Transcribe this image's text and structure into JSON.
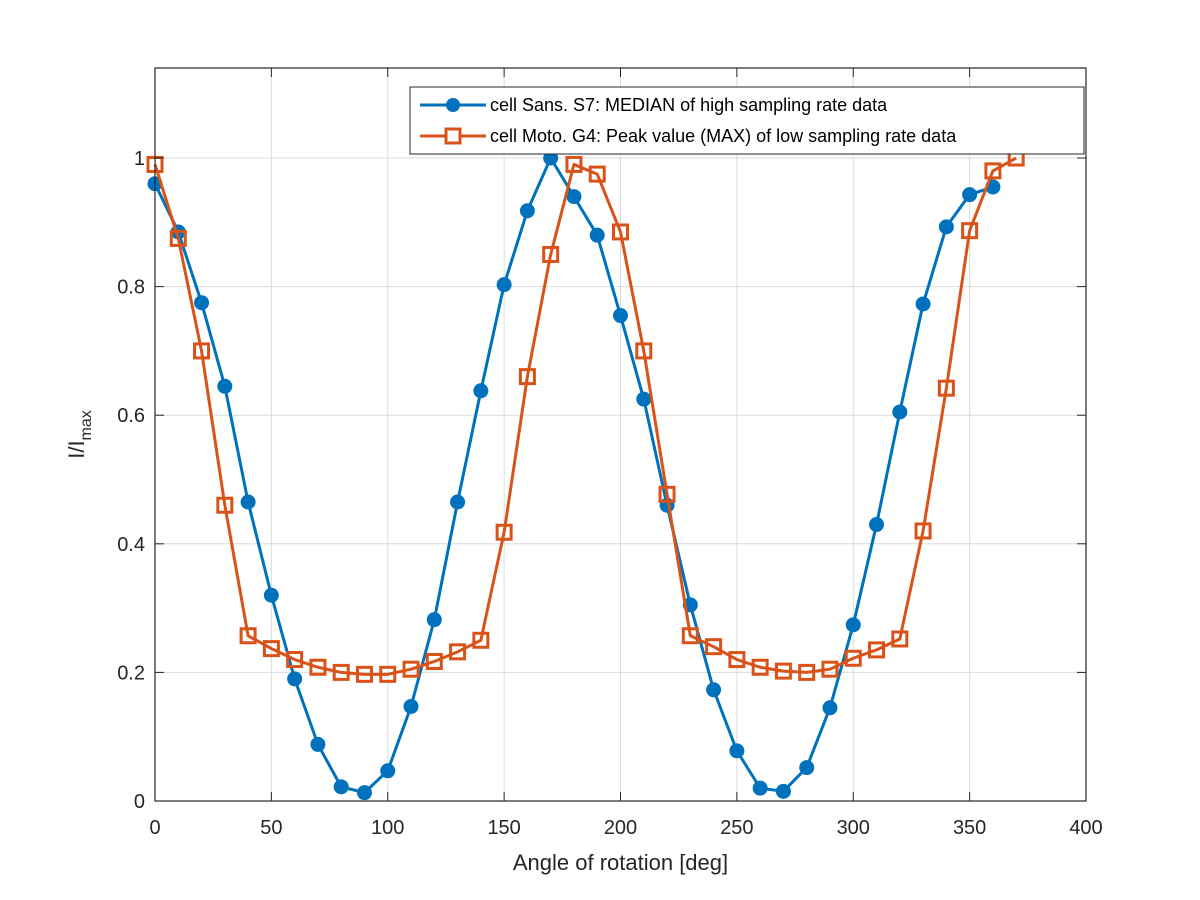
{
  "chart_data": {
    "type": "line",
    "title": "",
    "xlabel": "Angle of rotation [deg]",
    "ylabel_main": "I/I",
    "ylabel_sub": "max",
    "xlim": [
      0,
      400
    ],
    "ylim": [
      0,
      1.14
    ],
    "xticks": [
      "0",
      "50",
      "100",
      "150",
      "200",
      "250",
      "300",
      "350",
      "400"
    ],
    "yticks": [
      "0",
      "0.2",
      "0.4",
      "0.6",
      "0.8",
      "1"
    ],
    "grid": true,
    "legend_position": "top-right",
    "series": [
      {
        "name": "cell Sans. S7: MEDIAN of high sampling rate data",
        "color": "#0072BD",
        "marker": "filled-circle",
        "x": [
          0,
          10,
          20,
          30,
          40,
          50,
          60,
          70,
          80,
          90,
          100,
          110,
          120,
          130,
          140,
          150,
          160,
          170,
          180,
          190,
          200,
          210,
          220,
          230,
          240,
          250,
          260,
          270,
          280,
          290,
          300,
          310,
          320,
          330,
          340,
          350,
          360
        ],
        "y": [
          0.96,
          0.885,
          0.775,
          0.645,
          0.465,
          0.32,
          0.19,
          0.088,
          0.022,
          0.013,
          0.047,
          0.147,
          0.282,
          0.465,
          0.638,
          0.803,
          0.918,
          1.0,
          0.94,
          0.88,
          0.755,
          0.625,
          0.46,
          0.305,
          0.173,
          0.078,
          0.02,
          0.015,
          0.052,
          0.145,
          0.274,
          0.43,
          0.605,
          0.773,
          0.893,
          0.943,
          0.955
        ]
      },
      {
        "name": "cell Moto. G4: Peak value (MAX) of low sampling rate data",
        "color": "#D95319",
        "marker": "open-square",
        "x": [
          0,
          10,
          20,
          30,
          40,
          50,
          60,
          70,
          80,
          90,
          100,
          110,
          120,
          130,
          140,
          150,
          160,
          170,
          180,
          190,
          200,
          210,
          220,
          230,
          240,
          250,
          260,
          270,
          280,
          290,
          300,
          310,
          320,
          330,
          340,
          350,
          360,
          370
        ],
        "y": [
          0.99,
          0.875,
          0.7,
          0.46,
          0.257,
          0.237,
          0.22,
          0.208,
          0.2,
          0.197,
          0.197,
          0.205,
          0.217,
          0.232,
          0.25,
          0.418,
          0.66,
          0.85,
          0.99,
          0.975,
          0.885,
          0.7,
          0.477,
          0.257,
          0.24,
          0.22,
          0.208,
          0.202,
          0.2,
          0.205,
          0.222,
          0.235,
          0.252,
          0.42,
          0.642,
          0.887,
          0.98,
          1.0
        ]
      }
    ]
  }
}
